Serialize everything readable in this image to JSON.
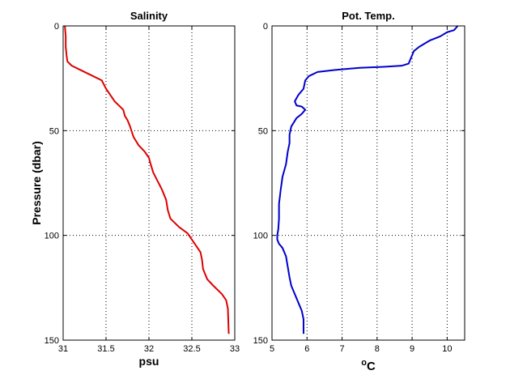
{
  "chart_data": [
    {
      "type": "line",
      "title": "Salinity",
      "xlabel": "psu",
      "ylabel": "Pressure (dbar)",
      "xlim": [
        31,
        33
      ],
      "ylim": [
        0,
        150
      ],
      "y_reversed": true,
      "grid": true,
      "xticks": [
        31,
        31.5,
        32,
        32.5,
        33
      ],
      "xtick_labels": [
        "31",
        "31.5",
        "32",
        "32.5",
        "33"
      ],
      "yticks": [
        0,
        50,
        100,
        150
      ],
      "ytick_labels": [
        "0",
        "50",
        "100",
        "150"
      ],
      "color": "#dd0000",
      "series": [
        {
          "x": [
            31.02,
            31.03,
            31.03,
            31.04,
            31.05,
            31.1,
            31.2,
            31.35,
            31.45,
            31.5,
            31.55,
            31.6,
            31.65,
            31.7,
            31.72,
            31.75,
            31.78,
            31.82,
            31.88,
            31.95,
            32.0,
            32.02,
            32.05,
            32.1,
            32.15,
            32.2,
            32.22,
            32.25,
            32.35,
            32.45,
            32.5,
            32.55,
            32.6,
            32.62,
            32.63,
            32.65,
            32.68,
            32.75,
            32.85,
            32.9,
            32.92,
            32.93
          ],
          "y": [
            0,
            5,
            10,
            14,
            17,
            19,
            21,
            24,
            26,
            30,
            33,
            36,
            38,
            40,
            43,
            45,
            48,
            53,
            57,
            60,
            63,
            66,
            70,
            74,
            78,
            83,
            88,
            92,
            96,
            99,
            102,
            105,
            108,
            112,
            116,
            118,
            121,
            124,
            128,
            131,
            135,
            147
          ]
        }
      ]
    },
    {
      "type": "line",
      "title": "Pot. Temp.",
      "xlabel": "oC",
      "xlabel_superscript": "o",
      "xlabel_main": "C",
      "ylim": [
        0,
        150
      ],
      "y_reversed": true,
      "xlim": [
        5,
        10.5
      ],
      "grid": true,
      "xticks": [
        5,
        6,
        7,
        8,
        9,
        10
      ],
      "xtick_labels": [
        "5",
        "6",
        "7",
        "8",
        "9",
        "10"
      ],
      "yticks": [
        0,
        50,
        100,
        150
      ],
      "ytick_labels": [
        "0",
        "50",
        "100",
        "150"
      ],
      "color": "#0000cc",
      "series": [
        {
          "x": [
            10.3,
            10.2,
            10.0,
            9.8,
            9.5,
            9.2,
            9.05,
            9.0,
            8.95,
            8.9,
            8.7,
            8.2,
            7.5,
            6.8,
            6.3,
            6.05,
            5.95,
            5.9,
            5.75,
            5.65,
            5.7,
            5.85,
            5.95,
            5.85,
            5.7,
            5.55,
            5.5,
            5.5,
            5.45,
            5.4,
            5.3,
            5.25,
            5.2,
            5.2,
            5.18,
            5.15,
            5.15,
            5.2,
            5.3,
            5.4,
            5.45,
            5.5,
            5.55,
            5.65,
            5.75,
            5.85,
            5.9,
            5.9
          ],
          "y": [
            0,
            2,
            3,
            5,
            7,
            10,
            12,
            14,
            16,
            18,
            19,
            19.5,
            20,
            21,
            22,
            24,
            26,
            30,
            33,
            36,
            38,
            38.5,
            40,
            42,
            44,
            48,
            52,
            56,
            60,
            66,
            72,
            78,
            85,
            92,
            97,
            100,
            102,
            104,
            106,
            110,
            115,
            120,
            124,
            128,
            132,
            136,
            140,
            147
          ]
        }
      ]
    }
  ]
}
